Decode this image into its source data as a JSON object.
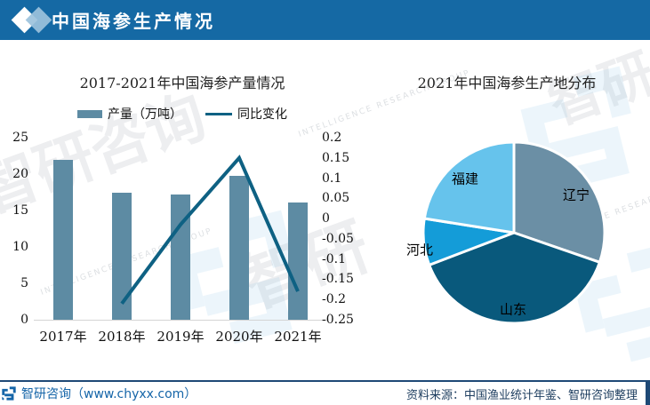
{
  "header": {
    "title": "中国海参生产情况"
  },
  "brand": {
    "header_bg": "#1569A4",
    "bar_color": "#5D8BA3",
    "line_color": "#0E6183",
    "footer_accent": "#1E4976",
    "link_blue": "#1565A8",
    "source_color": "#1C3C5E",
    "diamond_light": "#9CC2DC"
  },
  "chart_data": [
    {
      "type": "bar",
      "title": "2017-2021年中国海参产量情况",
      "categories": [
        "2017年",
        "2018年",
        "2019年",
        "2020年",
        "2021年"
      ],
      "series": [
        {
          "name": "产量（万吨）",
          "kind": "bar",
          "axis": "left",
          "values": [
            22.0,
            17.4,
            17.2,
            19.7,
            16.1
          ],
          "color": "#5D8BA3"
        },
        {
          "name": "同比变化",
          "kind": "line",
          "axis": "right",
          "values": [
            null,
            -0.21,
            -0.015,
            0.15,
            -0.18
          ],
          "color": "#0E6183"
        }
      ],
      "left_axis": {
        "min": 0,
        "max": 25,
        "ticks": [
          0,
          5,
          10,
          15,
          20,
          25
        ]
      },
      "right_axis": {
        "min": -0.25,
        "max": 0.2,
        "ticks": [
          0.2,
          0.15,
          0.1,
          0.05,
          0,
          -0.05,
          -0.1,
          -0.15,
          -0.2,
          -0.25
        ]
      },
      "grid": false,
      "legend_position": "top"
    },
    {
      "type": "pie",
      "title": "2021年中国海参生产地分布",
      "labels": [
        "辽宁",
        "山东",
        "河北",
        "福建"
      ],
      "values": [
        30.3,
        38.9,
        8.3,
        22.5
      ],
      "colors": [
        "#6B8FA5",
        "#09597C",
        "#149CD8",
        "#66C3EC"
      ],
      "start_angle_deg": 0,
      "clockwise": true,
      "legend_position": "none"
    }
  ],
  "footer": {
    "brand": "智研咨询（www.chyxx.com）",
    "source": "资料来源：中国渔业统计年鉴、智研咨询整理"
  },
  "watermarks": {
    "text_main": "智研咨询",
    "text_short": "智研",
    "text_small": "INTELLIGENCE RESEARCH GROUP"
  }
}
